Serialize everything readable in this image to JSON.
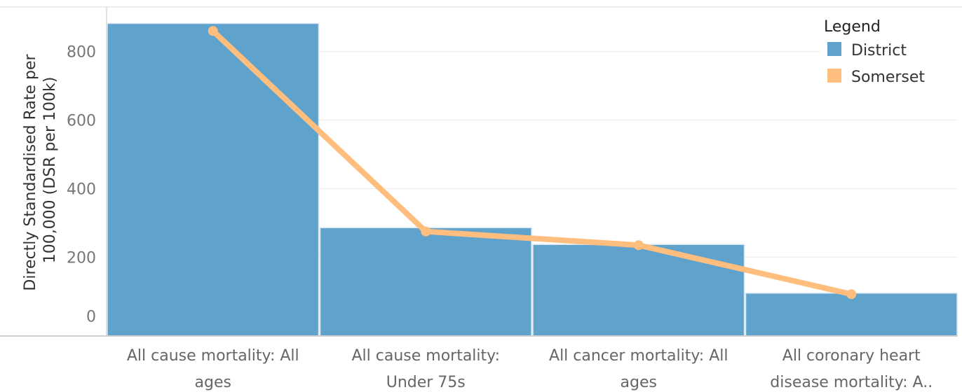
{
  "chart_data": {
    "type": "bar",
    "categories": [
      [
        "All cause mortality: All",
        "ages"
      ],
      [
        "All cause mortality:",
        "Under 75s"
      ],
      [
        "All cancer mortality: All",
        "ages"
      ],
      [
        "All coronary heart",
        "disease mortality: A.."
      ]
    ],
    "series": [
      {
        "name": "District",
        "type": "bar",
        "color": "#5fa2cc",
        "values": [
          882,
          286,
          237,
          95
        ]
      },
      {
        "name": "Somerset",
        "type": "line",
        "color": "#ffbe7d",
        "values": [
          860,
          275,
          235,
          92
        ]
      }
    ],
    "ylabel": [
      "Directly Standardised Rate per",
      "100,000 (DSR per 100k)"
    ],
    "yticks": [
      0,
      200,
      400,
      600,
      800
    ],
    "ylim": [
      -30,
      930
    ],
    "grid": true,
    "legend": {
      "title": "Legend",
      "placement": "top-right"
    }
  }
}
